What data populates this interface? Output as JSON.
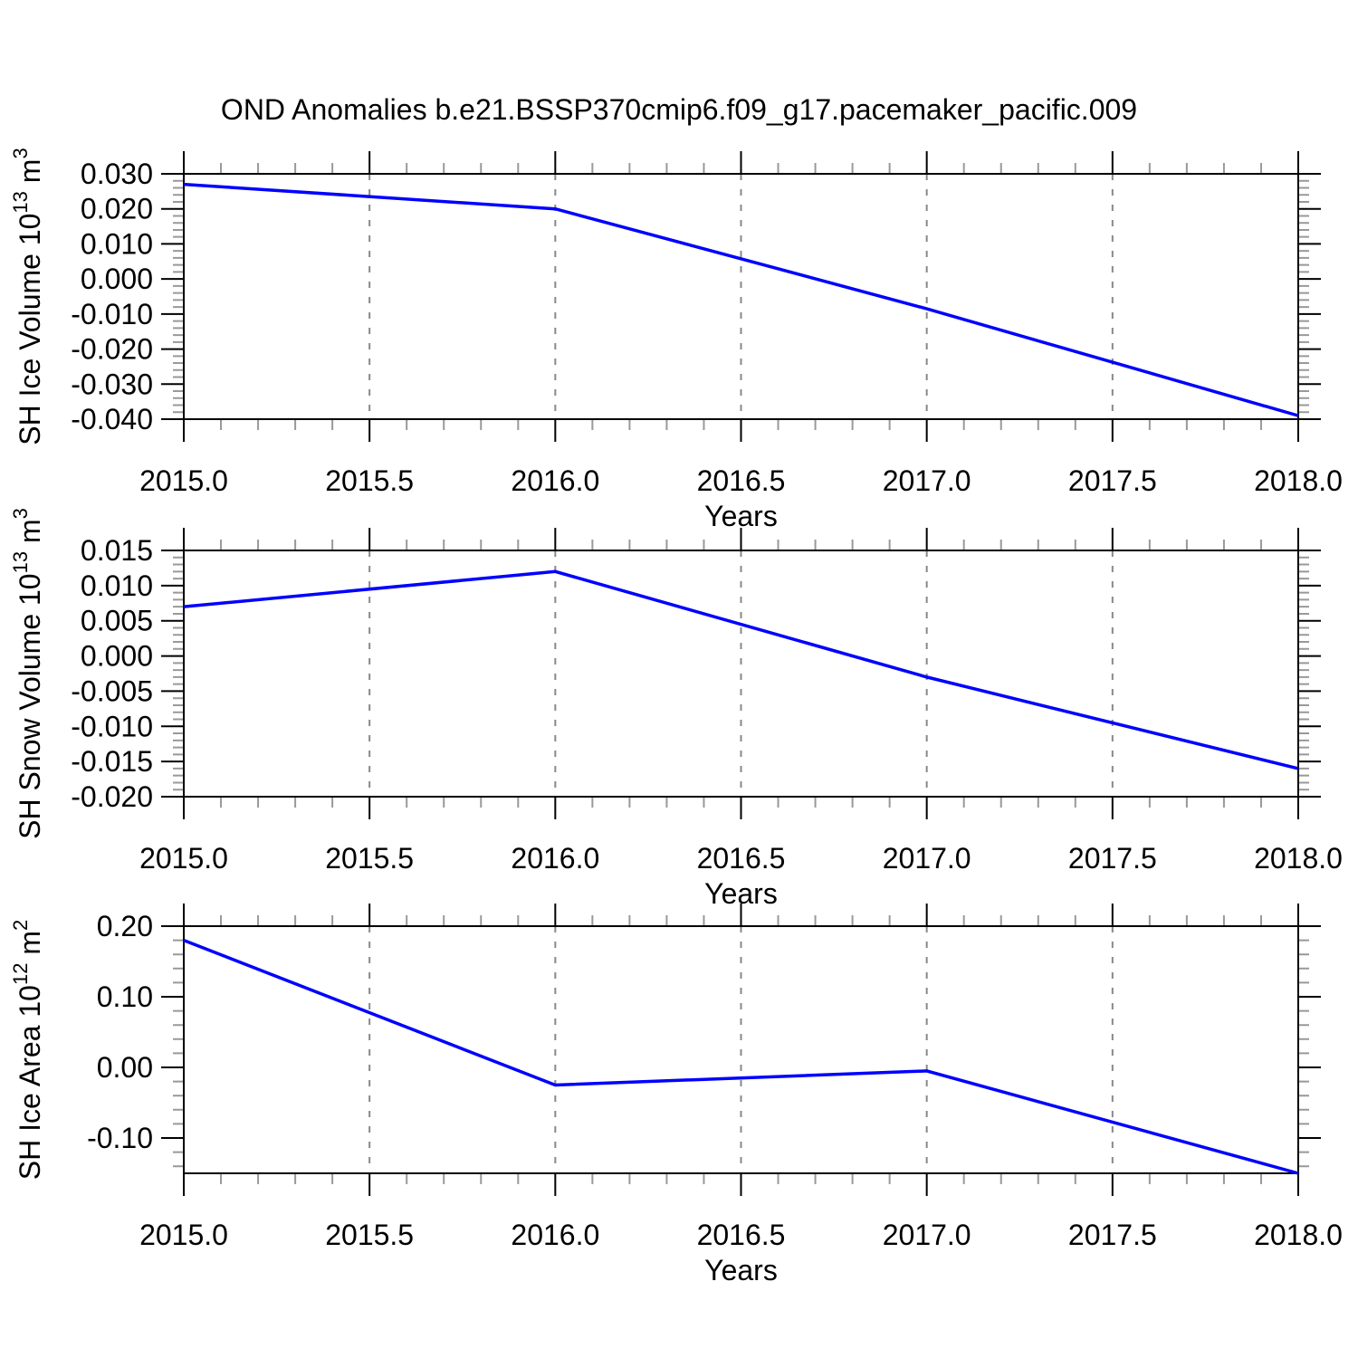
{
  "title": "OND Anomalies b.e21.BSSP370cmip6.f09_g17.pacemaker_pacific.009",
  "colors": {
    "line": "#0000ff",
    "frame": "#000000",
    "grid": "#888888",
    "minor_tick": "#999999",
    "text": "#000000",
    "background": "#ffffff"
  },
  "x_axis": {
    "label": "Years",
    "range": [
      2015.0,
      2018.0
    ],
    "minor_step": 0.1,
    "grid_values": [
      2015.5,
      2016.0,
      2016.5,
      2017.0,
      2017.5
    ],
    "ticks": [
      {
        "value": 2015.0,
        "label": "2015.0"
      },
      {
        "value": 2015.5,
        "label": "2015.5"
      },
      {
        "value": 2016.0,
        "label": "2016.0"
      },
      {
        "value": 2016.5,
        "label": "2016.5"
      },
      {
        "value": 2017.0,
        "label": "2017.0"
      },
      {
        "value": 2017.5,
        "label": "2017.5"
      },
      {
        "value": 2018.0,
        "label": "2018.0"
      }
    ]
  },
  "chart_data": [
    {
      "type": "line",
      "ylabel": "SH Ice Volume 10^13 m^3",
      "ylabel_parts": [
        {
          "t": "SH Ice Volume 10"
        },
        {
          "t": "13",
          "sup": true
        },
        {
          "t": " m"
        },
        {
          "t": "3",
          "sup": true
        }
      ],
      "xlabel": "Years",
      "x": [
        2015,
        2016,
        2017,
        2018
      ],
      "values": [
        0.027,
        0.02,
        -0.0085,
        -0.039
      ],
      "xlim": [
        2015,
        2018
      ],
      "ylim": [
        -0.04,
        0.03
      ],
      "y_minor_step": 0.002,
      "yticks": [
        {
          "value": 0.03,
          "label": "0.030"
        },
        {
          "value": 0.02,
          "label": "0.020"
        },
        {
          "value": 0.01,
          "label": "0.010"
        },
        {
          "value": 0.0,
          "label": "0.000"
        },
        {
          "value": -0.01,
          "label": "-0.010"
        },
        {
          "value": -0.02,
          "label": "-0.020"
        },
        {
          "value": -0.03,
          "label": "-0.030"
        },
        {
          "value": -0.04,
          "label": "-0.040"
        }
      ],
      "grid": "vertical-dashed",
      "legend": "none"
    },
    {
      "type": "line",
      "ylabel": "SH Snow Volume 10^13 m^3",
      "ylabel_parts": [
        {
          "t": "SH Snow Volume 10"
        },
        {
          "t": "13",
          "sup": true
        },
        {
          "t": " m"
        },
        {
          "t": "3",
          "sup": true
        }
      ],
      "xlabel": "Years",
      "x": [
        2015,
        2016,
        2017,
        2018
      ],
      "values": [
        0.007,
        0.012,
        -0.003,
        -0.016
      ],
      "xlim": [
        2015,
        2018
      ],
      "ylim": [
        -0.02,
        0.015
      ],
      "y_minor_step": 0.001,
      "yticks": [
        {
          "value": 0.015,
          "label": "0.015"
        },
        {
          "value": 0.01,
          "label": "0.010"
        },
        {
          "value": 0.005,
          "label": "0.005"
        },
        {
          "value": 0.0,
          "label": "0.000"
        },
        {
          "value": -0.005,
          "label": "-0.005"
        },
        {
          "value": -0.01,
          "label": "-0.010"
        },
        {
          "value": -0.015,
          "label": "-0.015"
        },
        {
          "value": -0.02,
          "label": "-0.020"
        }
      ],
      "grid": "vertical-dashed",
      "legend": "none"
    },
    {
      "type": "line",
      "ylabel": "SH Ice Area 10^12 m^2",
      "ylabel_parts": [
        {
          "t": "SH Ice Area 10"
        },
        {
          "t": "12",
          "sup": true
        },
        {
          "t": " m"
        },
        {
          "t": "2",
          "sup": true
        }
      ],
      "xlabel": "Years",
      "x": [
        2015,
        2016,
        2017,
        2018
      ],
      "values": [
        0.18,
        -0.025,
        -0.005,
        -0.15
      ],
      "xlim": [
        2015,
        2018
      ],
      "ylim": [
        -0.15,
        0.2
      ],
      "y_minor_step": 0.02,
      "yticks": [
        {
          "value": 0.2,
          "label": "0.20"
        },
        {
          "value": 0.1,
          "label": "0.10"
        },
        {
          "value": 0.0,
          "label": "0.00"
        },
        {
          "value": -0.1,
          "label": "-0.10"
        }
      ],
      "grid": "vertical-dashed",
      "legend": "none"
    }
  ]
}
